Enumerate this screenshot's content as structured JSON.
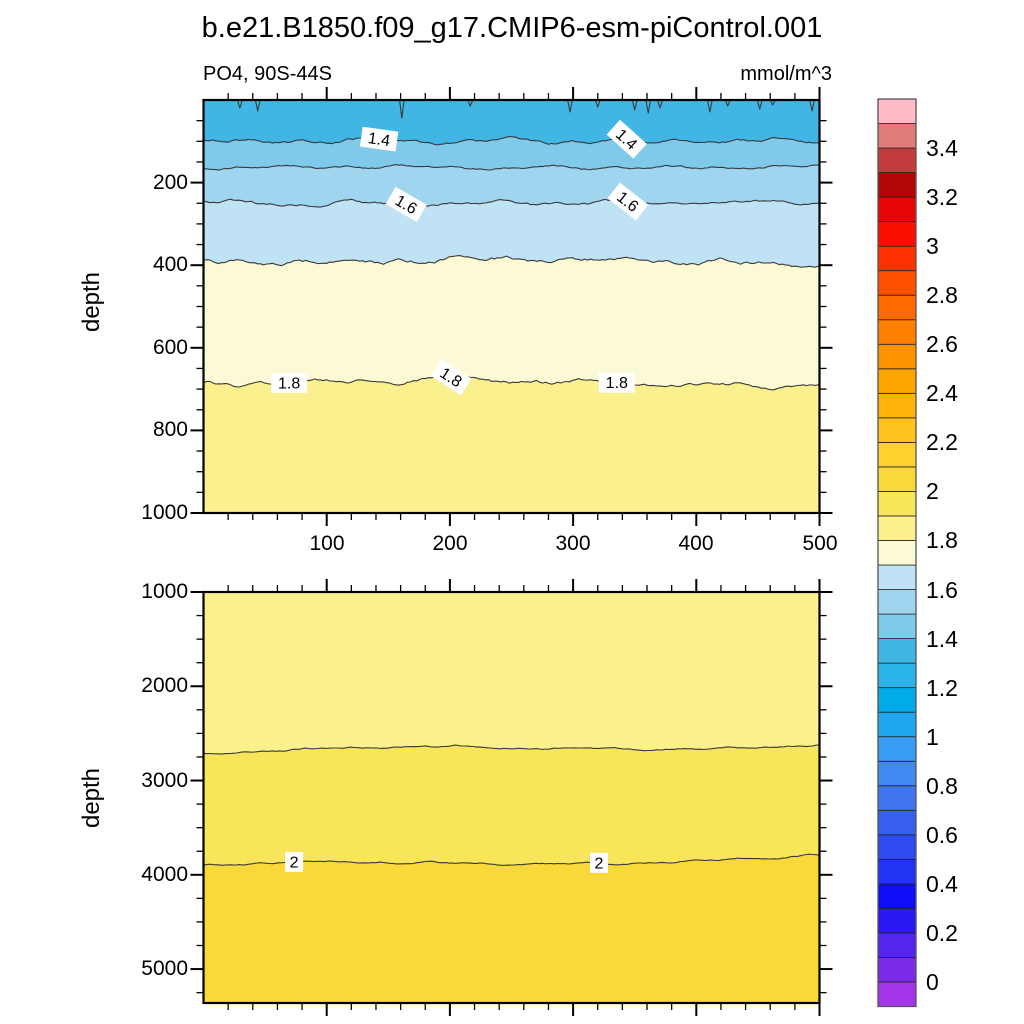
{
  "title": "b.e21.B1850.f09_g17.CMIP6-esm-piControl.001",
  "chart_data": [
    {
      "panel": "upper",
      "type": "heatmap",
      "subtype": "filled-contour-depth-section",
      "title": "PO4, 90S-44S",
      "units": "mmol/m^3",
      "xlabel": "",
      "ylabel": "depth",
      "x_range": [
        0,
        500
      ],
      "x_ticks": [
        100,
        200,
        300,
        400,
        500
      ],
      "x_minor_step": 20,
      "depth_range": [
        0,
        1000
      ],
      "depth_ticks": [
        200,
        400,
        600,
        800,
        1000
      ],
      "depth_minor_step": 50,
      "grid": false,
      "contour_interval": 0.1,
      "bottom_band_color": "#FAF08E",
      "contours": [
        {
          "level": 1.8,
          "depth": 685,
          "color_above": "#FCFAD4",
          "seed": 81,
          "amp": 2.3,
          "big": 3,
          "labels": [
            {
              "x_frac": 0.139,
              "rot": 0,
              "text": "1.8"
            },
            {
              "x_frac": 0.402,
              "rot": 33,
              "text": "1.8"
            },
            {
              "x_frac": 0.671,
              "rot": 0,
              "text": "1.8"
            }
          ]
        },
        {
          "level": 1.7,
          "depth": 390,
          "color_above": "#BFE2F5",
          "seed": 72,
          "amp": 2.7,
          "big": 2,
          "labels": []
        },
        {
          "level": 1.6,
          "depth": 250,
          "color_above": "#A0D5EF",
          "seed": 63,
          "amp": 2.0,
          "big": 0,
          "labels": [
            {
              "x_frac": 0.329,
              "rot": 30,
              "text": "1.6"
            },
            {
              "x_frac": 0.689,
              "rot": 38,
              "text": "1.6"
            }
          ]
        },
        {
          "level": 1.5,
          "depth": 163,
          "color_above": "#7FC9EA",
          "seed": 54,
          "amp": 1.5,
          "big": 0,
          "labels": []
        },
        {
          "level": 1.4,
          "depth": 100,
          "color_above": "#41B6E4",
          "seed": 45,
          "amp": 2.1,
          "big": 0,
          "labels": [
            {
              "x_frac": 0.285,
              "rot": 8,
              "text": "1.4"
            },
            {
              "x_frac": 0.687,
              "rot": 42,
              "text": "1.4"
            }
          ]
        }
      ],
      "surface_spikes": {
        "level": 1.3,
        "spikes": [
          [
            0.059,
            8
          ],
          [
            0.088,
            11
          ],
          [
            0.322,
            18
          ],
          [
            0.433,
            6
          ],
          [
            0.595,
            12
          ],
          [
            0.64,
            7
          ],
          [
            0.7,
            10
          ],
          [
            0.722,
            13
          ],
          [
            0.741,
            8
          ],
          [
            0.822,
            12
          ],
          [
            0.851,
            6
          ],
          [
            0.903,
            9
          ],
          [
            0.924,
            5
          ],
          [
            0.988,
            11
          ]
        ]
      }
    },
    {
      "panel": "lower",
      "type": "heatmap",
      "subtype": "filled-contour-depth-section",
      "xlabel": "",
      "ylabel": "depth",
      "x_range": [
        0,
        500
      ],
      "x_ticks": [
        100,
        200,
        300,
        400,
        500
      ],
      "x_tick_labels_shown": false,
      "x_minor_step": 20,
      "depth_range": [
        1000,
        5360
      ],
      "depth_ticks": [
        1000,
        2000,
        3000,
        4000,
        5000
      ],
      "depth_minor_step": 250,
      "grid": false,
      "contour_interval": 0.1,
      "bottom_band_color": "#F9D839",
      "contours": [
        {
          "level": 2.0,
          "depth": 3865,
          "trend": -11,
          "color_above": "#F8E55A",
          "seed": 20,
          "amp": 1.0,
          "big": 3.5,
          "labels": [
            {
              "x_frac": 0.147,
              "rot": 0,
              "text": "2"
            },
            {
              "x_frac": 0.642,
              "rot": 0,
              "text": "2"
            }
          ]
        },
        {
          "level": 1.9,
          "depth": 2660,
          "trend": -9,
          "color_above": "#FAF18D",
          "seed": 19,
          "amp": 1.0,
          "big": 3,
          "labels": []
        }
      ]
    },
    {
      "type": "colorbar",
      "units": "mmol/m^3",
      "orientation": "vertical",
      "level_min": 0,
      "level_max": 3.5,
      "level_step": 0.1,
      "tick_labels": [
        "0",
        "0.2",
        "0.4",
        "0.6",
        "0.8",
        "1",
        "1.2",
        "1.4",
        "1.6",
        "1.8",
        "2",
        "2.2",
        "2.4",
        "2.6",
        "2.8",
        "3",
        "3.2",
        "3.4"
      ],
      "box_colors_bottom_to_top": [
        "#A235E9",
        "#7B2BE5",
        "#5226EF",
        "#2A17F2",
        "#0E0EF6",
        "#2233F3",
        "#2E4AF1",
        "#3760F0",
        "#3F76F0",
        "#418AF2",
        "#389DF4",
        "#1FA8F0",
        "#00ACE8",
        "#29B3E8",
        "#41B6E4",
        "#7FC9EA",
        "#A0D5EF",
        "#BFE2F5",
        "#FCFAD4",
        "#FAF08E",
        "#F8E55A",
        "#F9D839",
        "#FFD02E",
        "#FFC31F",
        "#FFB30C",
        "#FFA500",
        "#FF9400",
        "#FF8000",
        "#FF6900",
        "#FF5000",
        "#FF3000",
        "#FB1000",
        "#E60606",
        "#B20707",
        "#C33D3D",
        "#E17C7C",
        "#FFBBC6"
      ]
    }
  ],
  "style": {
    "contour_line_color": "#39393B",
    "frame_color": "#000000",
    "contour_label_box_color": "#ffffff"
  }
}
